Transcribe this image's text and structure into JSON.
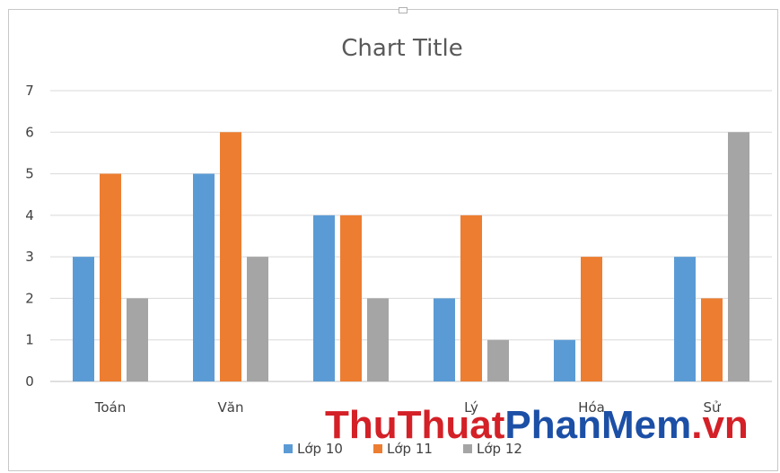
{
  "chart_data": {
    "type": "bar",
    "title": "Chart Title",
    "categories": [
      "Toán",
      "Văn",
      "",
      "Lý",
      "Hóa",
      "Sử"
    ],
    "series": [
      {
        "name": "Lớp 10",
        "values": [
          3,
          5,
          4,
          2,
          1,
          3
        ],
        "color": "#5b9bd5"
      },
      {
        "name": "Lớp 11",
        "values": [
          5,
          6,
          4,
          4,
          3,
          2
        ],
        "color": "#ed7d31"
      },
      {
        "name": "Lớp 12",
        "values": [
          2,
          3,
          2,
          1,
          0,
          6
        ],
        "color": "#a5a5a5"
      }
    ],
    "ylim": [
      0,
      7
    ],
    "yticks": [
      0,
      1,
      2,
      3,
      4,
      5,
      6,
      7
    ],
    "grid": true,
    "legend": "bottom"
  },
  "watermark": {
    "part1": "ThuThuat",
    "part2": "PhanMem",
    "part3": ".vn"
  }
}
